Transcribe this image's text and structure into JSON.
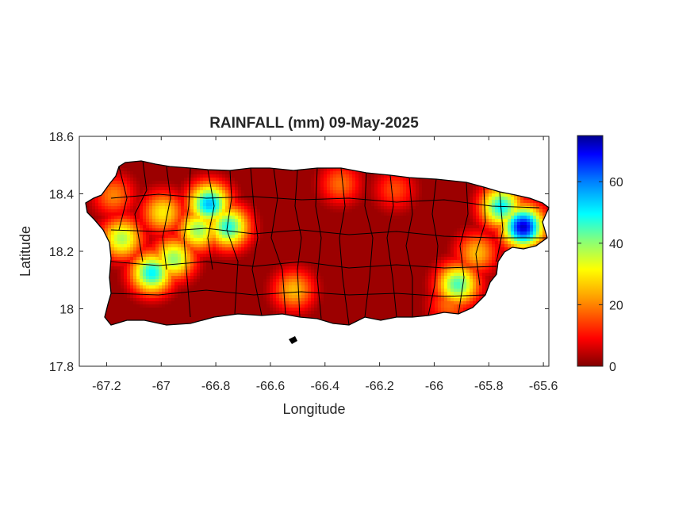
{
  "figure": {
    "title": "RAINFALL (mm) 09-May-2025",
    "xlabel": "Longitude",
    "ylabel": "Latitude"
  },
  "chart_data": {
    "type": "heatmap",
    "title": "RAINFALL (mm) 09-May-2025",
    "xlabel": "Longitude",
    "ylabel": "Latitude",
    "xlim": [
      -67.3,
      -65.58
    ],
    "ylim": [
      17.8,
      18.6
    ],
    "x_ticks": [
      -67.2,
      -67,
      -66.8,
      -66.6,
      -66.4,
      -66.2,
      -66,
      -65.8,
      -65.6
    ],
    "x_tick_labels": [
      "-67.2",
      "-67",
      "-66.8",
      "-66.6",
      "-66.4",
      "-66.2",
      "-66",
      "-65.8",
      "-65.6"
    ],
    "y_ticks": [
      17.8,
      18,
      18.2,
      18.4,
      18.6
    ],
    "y_tick_labels": [
      "17.8",
      "18",
      "18.2",
      "18.4",
      "18.6"
    ],
    "colorbar": {
      "colormap": "jet (reversed toward dark red at 0)",
      "range": [
        0,
        75
      ],
      "ticks": [
        0,
        20,
        40,
        60
      ],
      "tick_labels": [
        "0",
        "20",
        "40",
        "60"
      ]
    },
    "background_rainfall_mm": 2,
    "rain_cells": [
      {
        "lon": -66.83,
        "lat": 18.37,
        "mm": 55
      },
      {
        "lon": -66.76,
        "lat": 18.29,
        "mm": 48
      },
      {
        "lon": -66.87,
        "lat": 18.28,
        "mm": 40
      },
      {
        "lon": -67.04,
        "lat": 18.13,
        "mm": 50
      },
      {
        "lon": -66.96,
        "lat": 18.18,
        "mm": 40
      },
      {
        "lon": -67.15,
        "lat": 18.25,
        "mm": 38
      },
      {
        "lon": -67.0,
        "lat": 18.34,
        "mm": 30
      },
      {
        "lon": -67.18,
        "lat": 18.4,
        "mm": 20
      },
      {
        "lon": -66.52,
        "lat": 18.07,
        "mm": 25
      },
      {
        "lon": -66.35,
        "lat": 18.44,
        "mm": 18
      },
      {
        "lon": -65.68,
        "lat": 18.29,
        "mm": 72
      },
      {
        "lon": -65.76,
        "lat": 18.36,
        "mm": 50
      },
      {
        "lon": -65.92,
        "lat": 18.09,
        "mm": 45
      },
      {
        "lon": -65.85,
        "lat": 18.2,
        "mm": 25
      },
      {
        "lon": -65.95,
        "lat": 18.02,
        "mm": 18
      },
      {
        "lon": -66.15,
        "lat": 18.42,
        "mm": 15
      }
    ],
    "colors": {
      "axis": "#262626",
      "boundary": "#000000",
      "low": "#800000",
      "high": "#00008f"
    }
  }
}
